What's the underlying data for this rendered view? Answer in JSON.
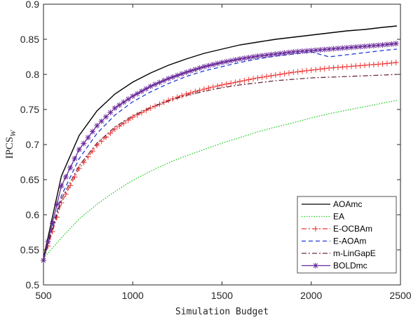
{
  "chart_data": {
    "type": "line",
    "title": "",
    "xlabel": "Simulation Budget",
    "ylabel": "IPCS",
    "ylabel_sub": "W",
    "xlim": [
      500,
      2500
    ],
    "ylim": [
      0.5,
      0.9
    ],
    "xticks": [
      "500",
      "1000",
      "1500",
      "2000",
      "2500"
    ],
    "yticks": [
      "0.5",
      "0.55",
      "0.6",
      "0.65",
      "0.7",
      "0.75",
      "0.8",
      "0.85",
      "0.9"
    ],
    "grid": false,
    "legend_position": "bottom-right",
    "x": [
      500,
      600,
      700,
      800,
      900,
      1000,
      1100,
      1200,
      1300,
      1400,
      1500,
      1600,
      1700,
      1800,
      1900,
      2000,
      2100,
      2200,
      2300,
      2400,
      2480
    ],
    "series": [
      {
        "name": "AOAmc",
        "color": "#000000",
        "dash": "solid",
        "marker": "none",
        "values": [
          0.538,
          0.655,
          0.713,
          0.748,
          0.772,
          0.789,
          0.802,
          0.813,
          0.822,
          0.83,
          0.836,
          0.842,
          0.846,
          0.85,
          0.853,
          0.856,
          0.859,
          0.862,
          0.864,
          0.867,
          0.869
        ]
      },
      {
        "name": "EA",
        "color": "#22cc22",
        "dash": "dotted",
        "marker": "none",
        "values": [
          0.538,
          0.567,
          0.594,
          0.615,
          0.633,
          0.649,
          0.662,
          0.674,
          0.684,
          0.693,
          0.702,
          0.71,
          0.718,
          0.725,
          0.731,
          0.738,
          0.744,
          0.749,
          0.754,
          0.759,
          0.763
        ]
      },
      {
        "name": "E-OCBAm",
        "color": "#ee3333",
        "dash": "dashdot",
        "marker": "plus",
        "values": [
          0.535,
          0.617,
          0.666,
          0.699,
          0.722,
          0.739,
          0.752,
          0.763,
          0.772,
          0.779,
          0.785,
          0.79,
          0.795,
          0.799,
          0.803,
          0.806,
          0.809,
          0.811,
          0.813,
          0.815,
          0.817
        ]
      },
      {
        "name": "E-AOAm",
        "color": "#1f3bd6",
        "dash": "dashed",
        "marker": "none",
        "values": [
          0.537,
          0.627,
          0.68,
          0.716,
          0.742,
          0.761,
          0.775,
          0.787,
          0.797,
          0.805,
          0.811,
          0.817,
          0.822,
          0.826,
          0.829,
          0.832,
          0.825,
          0.828,
          0.831,
          0.834,
          0.836
        ]
      },
      {
        "name": "m-LinGapE",
        "color": "#6b2a3a",
        "dash": "dashdot",
        "marker": "none",
        "values": [
          0.536,
          0.622,
          0.67,
          0.702,
          0.725,
          0.741,
          0.753,
          0.762,
          0.77,
          0.776,
          0.781,
          0.785,
          0.788,
          0.791,
          0.793,
          0.795,
          0.796,
          0.797,
          0.798,
          0.799,
          0.8
        ]
      },
      {
        "name": "BOLDmc",
        "color": "#6a2a9a",
        "dash": "solid",
        "marker": "star",
        "values": [
          0.535,
          0.641,
          0.693,
          0.727,
          0.752,
          0.769,
          0.783,
          0.794,
          0.803,
          0.811,
          0.817,
          0.822,
          0.826,
          0.829,
          0.832,
          0.834,
          0.836,
          0.838,
          0.84,
          0.842,
          0.844
        ]
      }
    ]
  }
}
